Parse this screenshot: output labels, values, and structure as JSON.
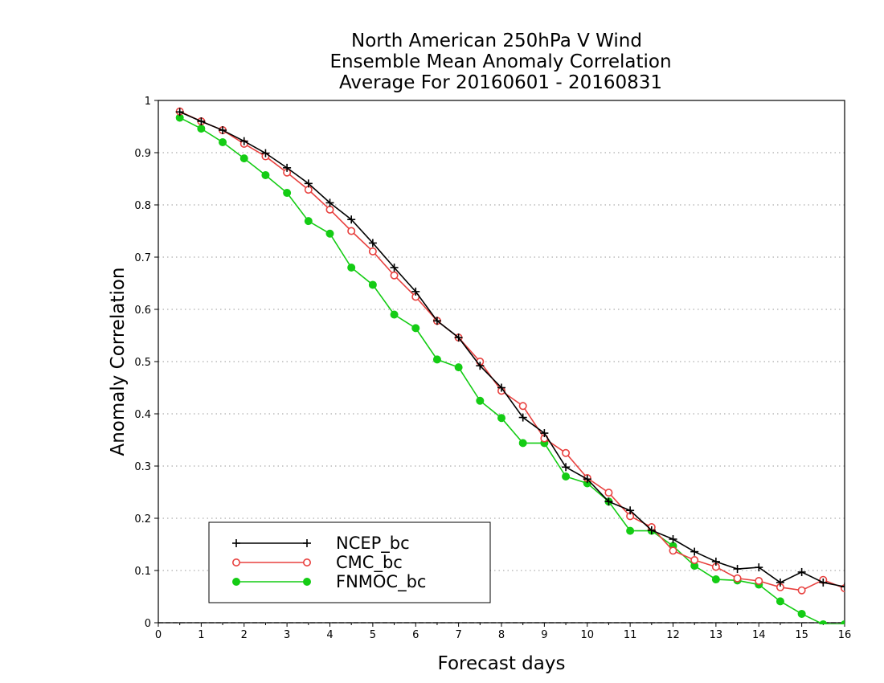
{
  "chart_data": {
    "type": "line",
    "title": [
      "North American 250hPa V Wind",
      "Ensemble Mean Anomaly Correlation",
      "Average For 20160601 - 20160831"
    ],
    "xlabel": "Forecast days",
    "ylabel": "Anomaly Correlation",
    "xlim": [
      0,
      16
    ],
    "ylim": [
      0,
      1
    ],
    "xticks": [
      "0",
      "1",
      "2",
      "3",
      "4",
      "5",
      "6",
      "7",
      "8",
      "9",
      "10",
      "11",
      "12",
      "13",
      "14",
      "15",
      "16"
    ],
    "yticks": [
      "0",
      "0.1",
      "0.2",
      "0.3",
      "0.4",
      "0.5",
      "0.6",
      "0.7",
      "0.8",
      "0.9",
      "1"
    ],
    "grid": "horizontal-dotted",
    "legend_position": "bottom-left",
    "x": [
      0.5,
      1,
      1.5,
      2,
      2.5,
      3,
      3.5,
      4,
      4.5,
      5,
      5.5,
      6,
      6.5,
      7,
      7.5,
      8,
      8.5,
      9,
      9.5,
      10,
      10.5,
      11,
      11.5,
      12,
      12.5,
      13,
      13.5,
      14,
      14.5,
      15,
      15.5,
      16
    ],
    "series": [
      {
        "name": "NCEP_bc",
        "color": "#000000",
        "marker": "plus",
        "values": [
          0.978,
          0.96,
          0.943,
          0.922,
          0.899,
          0.871,
          0.841,
          0.804,
          0.772,
          0.727,
          0.68,
          0.634,
          0.578,
          0.546,
          0.492,
          0.45,
          0.393,
          0.363,
          0.298,
          0.275,
          0.232,
          0.215,
          0.177,
          0.16,
          0.136,
          0.117,
          0.103,
          0.106,
          0.077,
          0.097,
          0.077,
          0.069
        ]
      },
      {
        "name": "CMC_bc",
        "color": "#e8413f",
        "marker": "open-circle",
        "values": [
          0.979,
          0.96,
          0.943,
          0.917,
          0.893,
          0.862,
          0.829,
          0.791,
          0.75,
          0.711,
          0.665,
          0.624,
          0.578,
          0.546,
          0.5,
          0.444,
          0.415,
          0.353,
          0.325,
          0.277,
          0.249,
          0.204,
          0.183,
          0.138,
          0.12,
          0.107,
          0.085,
          0.08,
          0.068,
          0.062,
          0.082,
          0.066
        ]
      },
      {
        "name": "FNMOC_bc",
        "color": "#14cc14",
        "marker": "filled-circle",
        "values": [
          0.967,
          0.946,
          0.92,
          0.889,
          0.857,
          0.823,
          0.769,
          0.745,
          0.68,
          0.647,
          0.59,
          0.564,
          0.504,
          0.489,
          0.425,
          0.392,
          0.344,
          0.344,
          0.28,
          0.267,
          0.232,
          0.176,
          0.176,
          0.147,
          0.109,
          0.083,
          0.081,
          0.073,
          0.041,
          0.017,
          -0.003,
          -0.003
        ]
      }
    ]
  }
}
